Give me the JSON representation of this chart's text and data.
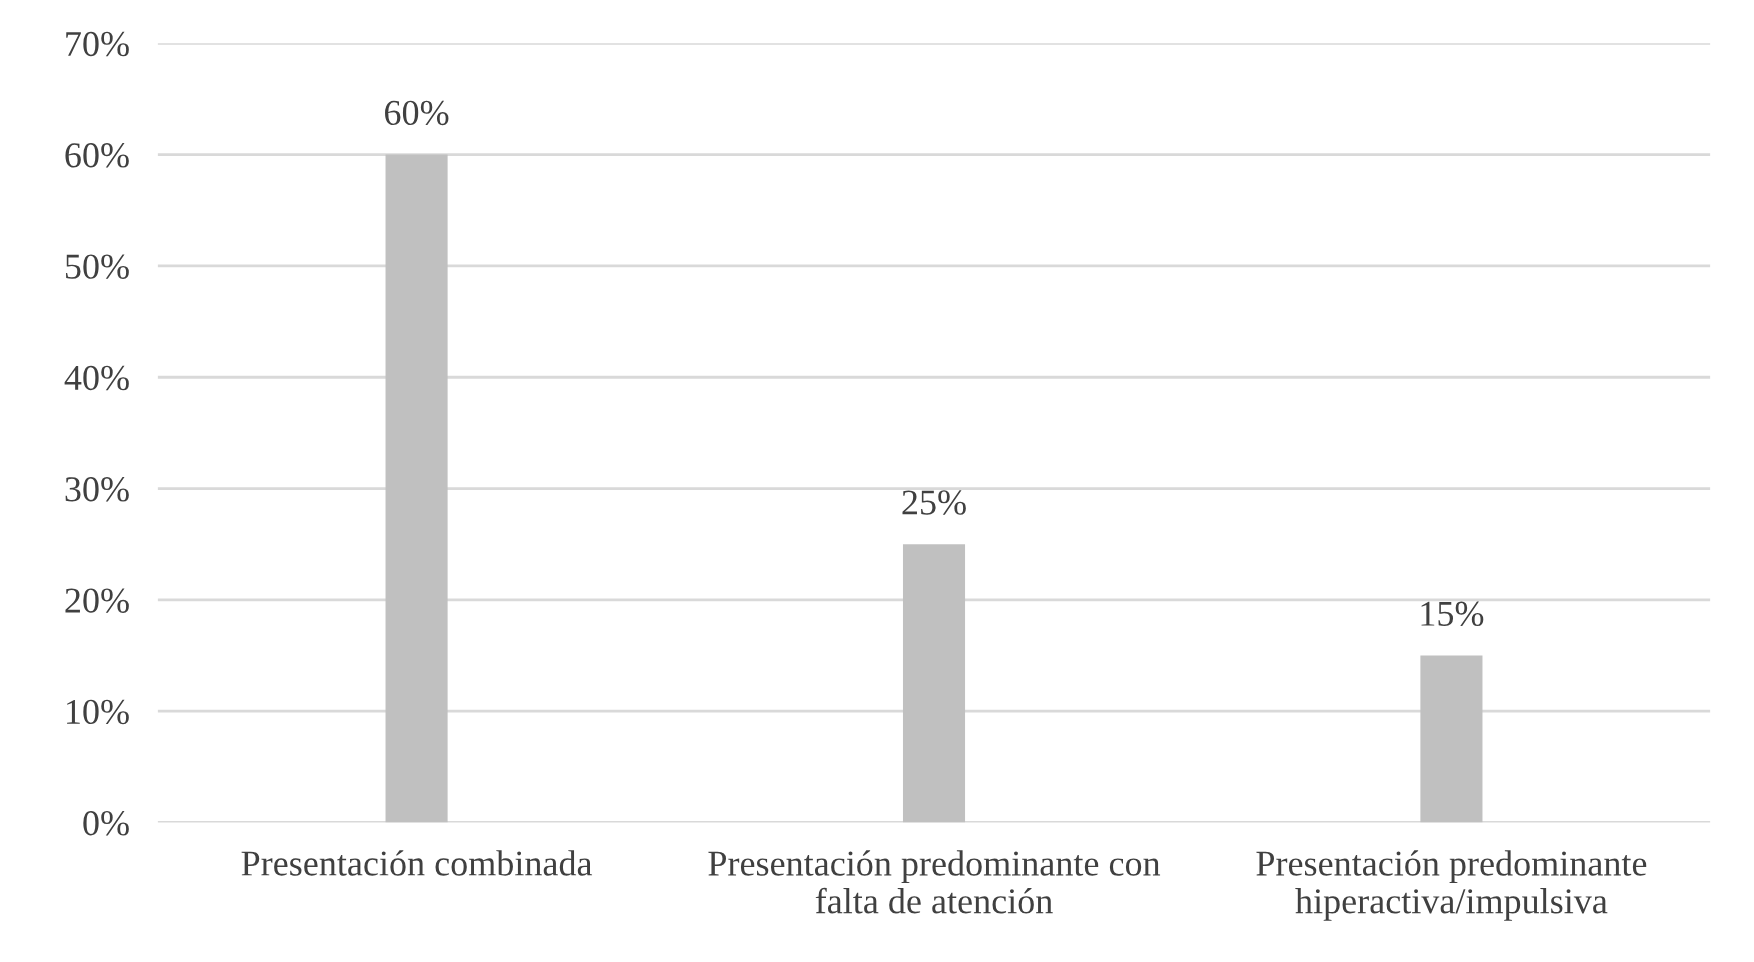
{
  "chart_data": {
    "type": "bar",
    "categories": [
      "Presentación combinada",
      "Presentación predominante con falta de atención",
      "Presentación predominante hiperactiva/impulsiva"
    ],
    "values": [
      60,
      25,
      15
    ],
    "color": "#c0c0c0",
    "ylim": [
      0,
      70
    ],
    "yticks": [
      {
        "value": 0,
        "label": "0%"
      },
      {
        "value": 10,
        "label": "10%"
      },
      {
        "value": 20,
        "label": "20%"
      },
      {
        "value": 30,
        "label": "30%"
      },
      {
        "value": 40,
        "label": "40%"
      },
      {
        "value": 50,
        "label": "50%"
      },
      {
        "value": 60,
        "label": "60%"
      },
      {
        "value": 70,
        "label": "70%"
      }
    ],
    "value_labels": [
      "60%",
      "25%",
      "15%"
    ],
    "grid": "y",
    "legend": false
  }
}
